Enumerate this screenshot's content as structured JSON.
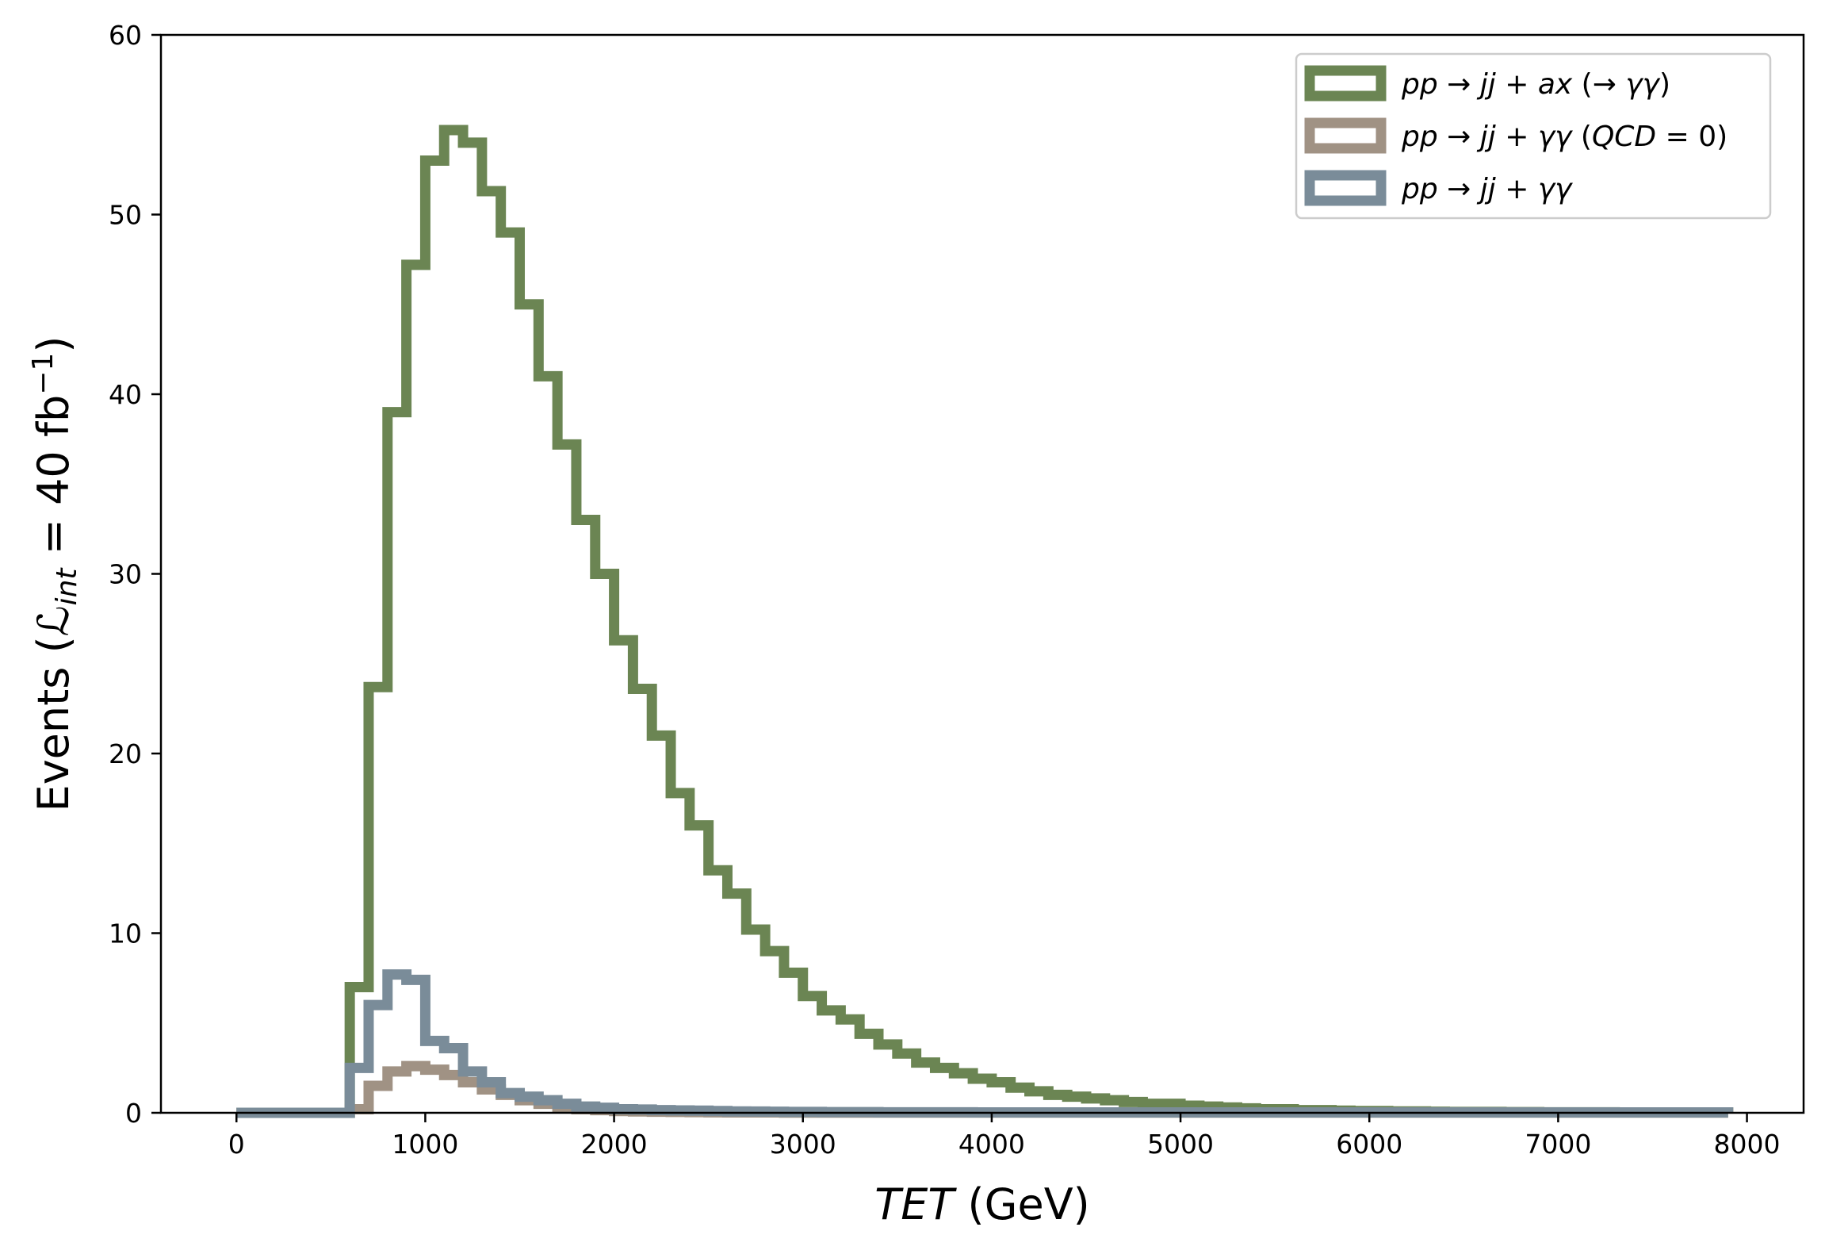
{
  "chart_data": {
    "type": "histogram-step",
    "xlabel": {
      "italic": "TET",
      "unit": " (GeV)"
    },
    "ylabel": {
      "main": "Events (",
      "script": "ℒ",
      "sub": "int",
      "mid": " = 40 fb",
      "sup": "−1",
      "close": ")"
    },
    "xlim": [
      -400,
      8300
    ],
    "ylim": [
      0,
      60
    ],
    "x_ticks": [
      0,
      1000,
      2000,
      3000,
      4000,
      5000,
      6000,
      7000,
      8000
    ],
    "x_tick_labels": [
      "0",
      "1000",
      "2000",
      "3000",
      "4000",
      "5000",
      "6000",
      "7000",
      "8000"
    ],
    "y_ticks": [
      0,
      10,
      20,
      30,
      40,
      50,
      60
    ],
    "y_tick_labels": [
      "0",
      "10",
      "20",
      "30",
      "40",
      "50",
      "60"
    ],
    "grid": false,
    "legend_position": "top-right",
    "bin_edges_start": 0,
    "bin_width": 100,
    "series": [
      {
        "name": "pp → jj + ax (→ γγ)",
        "legend_parts": [
          {
            "t": "pp",
            "i": true
          },
          {
            "t": " → ",
            "i": false
          },
          {
            "t": "jj",
            "i": true
          },
          {
            "t": " + ",
            "i": false
          },
          {
            "t": "ax",
            "i": true
          },
          {
            "t": " (→ ",
            "i": false
          },
          {
            "t": "γγ",
            "i": true
          },
          {
            "t": ")",
            "i": false
          }
        ],
        "color": "#6b8553",
        "values": [
          0,
          0,
          0,
          0,
          0,
          0,
          7,
          23.7,
          39,
          47.2,
          53,
          54.7,
          54,
          51.3,
          49,
          45,
          41,
          37.2,
          33,
          30,
          26.3,
          23.6,
          21,
          17.8,
          16,
          13.5,
          12.2,
          10.2,
          9,
          7.8,
          6.5,
          5.7,
          5.2,
          4.4,
          3.8,
          3.3,
          2.8,
          2.5,
          2.2,
          1.9,
          1.7,
          1.4,
          1.2,
          1.0,
          0.9,
          0.8,
          0.7,
          0.6,
          0.5,
          0.5,
          0.4,
          0.35,
          0.3,
          0.25,
          0.2,
          0.2,
          0.15,
          0.15,
          0.12,
          0.1,
          0.1,
          0.08,
          0.08,
          0.06,
          0.05,
          0.05,
          0.05,
          0.04,
          0.04,
          0.03,
          0.03,
          0.03,
          0.03,
          0.02,
          0.02,
          0.02,
          0.02,
          0.02,
          0.02
        ]
      },
      {
        "name": "pp → jj + γγ (QCD = 0)",
        "legend_parts": [
          {
            "t": "pp",
            "i": true
          },
          {
            "t": " → ",
            "i": false
          },
          {
            "t": "jj",
            "i": true
          },
          {
            "t": " + ",
            "i": false
          },
          {
            "t": "γγ",
            "i": true
          },
          {
            "t": " (",
            "i": false
          },
          {
            "t": "QCD",
            "i": true
          },
          {
            "t": " = 0)",
            "i": false
          }
        ],
        "color": "#a09284",
        "values": [
          0,
          0,
          0,
          0,
          0,
          0,
          0.2,
          1.5,
          2.3,
          2.6,
          2.4,
          2.1,
          1.7,
          1.3,
          1.0,
          0.7,
          0.5,
          0.3,
          0.2,
          0.15,
          0.1,
          0.08,
          0.06,
          0.05,
          0.04,
          0.03,
          0.02,
          0.02,
          0.02,
          0.01,
          0.01,
          0.01,
          0.01,
          0.01,
          0.01,
          0.01,
          0.01,
          0.01,
          0.01,
          0.01,
          0.01,
          0.01,
          0.01,
          0.01,
          0.01,
          0.01,
          0.01,
          0.01,
          0.01,
          0.01,
          0.01,
          0.01,
          0.01,
          0.01,
          0.01,
          0.01,
          0.01,
          0.01,
          0.01,
          0.01,
          0.01,
          0.01,
          0.01,
          0.01,
          0.01,
          0.01,
          0.01,
          0.01,
          0.01,
          0.01,
          0.01,
          0.01,
          0.01,
          0.01,
          0.01,
          0.01,
          0.01,
          0.01,
          0.01
        ]
      },
      {
        "name": "pp → jj + γγ",
        "legend_parts": [
          {
            "t": "pp",
            "i": true
          },
          {
            "t": " → ",
            "i": false
          },
          {
            "t": "jj",
            "i": true
          },
          {
            "t": " + ",
            "i": false
          },
          {
            "t": "γγ",
            "i": true
          }
        ],
        "color": "#7a8c99",
        "values": [
          0,
          0,
          0,
          0,
          0,
          0,
          2.5,
          6.0,
          7.7,
          7.4,
          4.0,
          3.6,
          2.3,
          1.7,
          1.1,
          0.9,
          0.7,
          0.5,
          0.35,
          0.28,
          0.2,
          0.18,
          0.15,
          0.13,
          0.12,
          0.1,
          0.08,
          0.07,
          0.06,
          0.05,
          0.05,
          0.04,
          0.04,
          0.04,
          0.03,
          0.03,
          0.03,
          0.03,
          0.03,
          0.02,
          0.02,
          0.02,
          0.02,
          0.02,
          0.02,
          0.02,
          0.02,
          0.02,
          0.02,
          0.02,
          0.02,
          0.02,
          0.02,
          0.02,
          0.02,
          0.02,
          0.02,
          0.02,
          0.02,
          0.02,
          0.02,
          0.02,
          0.02,
          0.02,
          0.02,
          0.02,
          0.02,
          0.02,
          0.02,
          0.02,
          0.02,
          0.02,
          0.02,
          0.02,
          0.02,
          0.02,
          0.02,
          0.02,
          0.02
        ]
      }
    ]
  }
}
